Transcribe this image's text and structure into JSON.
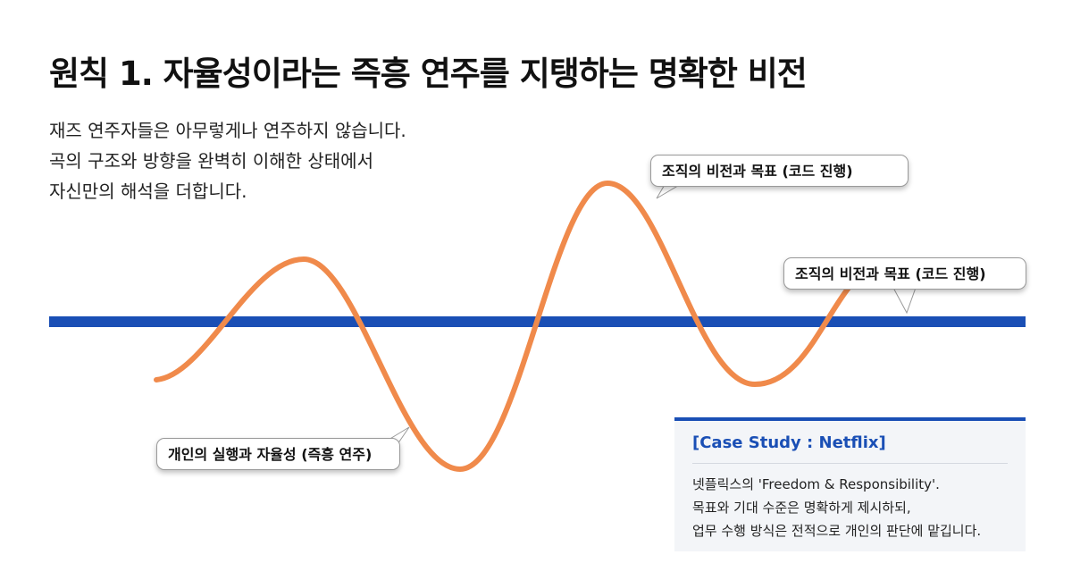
{
  "header": {
    "title": "원칙 1. 자율성이라는 즉흥 연주를 지탱하는 명확한 비전"
  },
  "intro": {
    "lines": [
      "재즈 연주자들은 아무렇게나 연주하지 않습니다.",
      "곡의 구조와 방향을 완벽히 이해한 상태에서",
      "자신만의 해석을 더합니다."
    ]
  },
  "callouts": [
    {
      "label": "조직의 비전과 목표 (코드 진행)"
    },
    {
      "label": "조직의 비전과 목표 (코드 진행)"
    },
    {
      "label": "개인의 실행과 자율성 (즉흥 연주)"
    }
  ],
  "case_study": {
    "title": "[Case Study : Netflix]",
    "lines": [
      "넷플릭스의 'Freedom & Responsibility'.",
      "목표와 기대 수준은 명확하게 제시하되,",
      "업무 수행 방식은 전적으로 개인의 판단에 맡깁니다."
    ]
  }
}
